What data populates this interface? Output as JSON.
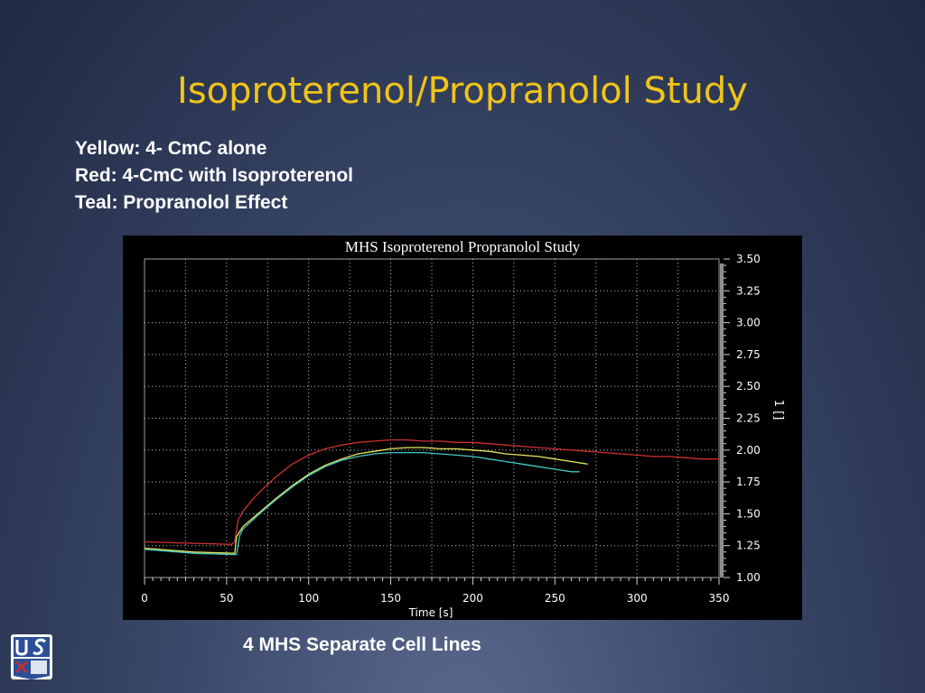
{
  "slide": {
    "title": "Isoproterenol/Propranolol Study",
    "legend_lines": [
      "Yellow: 4- CmC alone",
      "Red: 4-CmC with Isoproterenol",
      "Teal: Propranolol Effect"
    ],
    "caption": "4 MHS Separate Cell Lines"
  },
  "logo": {
    "letters": "USU",
    "colors": {
      "blue": "#2b4f96",
      "red": "#b8323c",
      "white": "#ffffff"
    }
  },
  "chart_data": {
    "type": "line",
    "title": "MHS Isoproterenol Propranolol Study",
    "xlabel": "Time [s]",
    "ylabel": "",
    "right_label": "1 []",
    "xlim": [
      0,
      350
    ],
    "ylim": [
      1.0,
      3.5
    ],
    "x_ticks": [
      0,
      50,
      100,
      150,
      200,
      250,
      300,
      350
    ],
    "y_ticks": [
      "1.00",
      "1.25",
      "1.50",
      "1.75",
      "2.00",
      "2.25",
      "2.50",
      "2.75",
      "3.00",
      "3.25",
      "3.50"
    ],
    "grid": true,
    "legend": "none",
    "series": [
      {
        "color": "#d03030",
        "x": [
          0,
          53,
          55,
          57,
          60,
          65,
          70,
          80,
          90,
          100,
          110,
          120,
          130,
          140,
          150,
          160,
          170,
          180,
          190,
          200,
          210,
          220,
          230,
          240,
          250,
          260,
          270,
          280,
          290,
          300,
          310,
          320,
          330,
          340,
          350
        ],
        "y": [
          1.28,
          1.26,
          1.28,
          1.45,
          1.52,
          1.6,
          1.67,
          1.79,
          1.89,
          1.96,
          2.01,
          2.04,
          2.06,
          2.07,
          2.08,
          2.08,
          2.07,
          2.07,
          2.06,
          2.06,
          2.05,
          2.04,
          2.03,
          2.02,
          2.01,
          2.0,
          1.99,
          1.98,
          1.97,
          1.96,
          1.95,
          1.95,
          1.94,
          1.93,
          1.93
        ]
      },
      {
        "color": "#e8e860",
        "x": [
          0,
          30,
          55,
          56,
          60,
          70,
          80,
          90,
          100,
          110,
          120,
          130,
          140,
          150,
          160,
          170,
          180,
          190,
          200,
          210,
          220,
          230,
          240,
          250,
          260,
          270
        ],
        "y": [
          1.23,
          1.2,
          1.19,
          1.32,
          1.4,
          1.51,
          1.62,
          1.72,
          1.81,
          1.88,
          1.93,
          1.97,
          1.99,
          2.01,
          2.02,
          2.02,
          2.01,
          2.01,
          2.0,
          1.99,
          1.97,
          1.96,
          1.95,
          1.93,
          1.91,
          1.89
        ]
      },
      {
        "color": "#40c8c8",
        "x": [
          0,
          30,
          54,
          56,
          58,
          60,
          70,
          80,
          90,
          100,
          110,
          120,
          130,
          140,
          150,
          160,
          170,
          180,
          190,
          200,
          210,
          220,
          230,
          240,
          250,
          260,
          265
        ],
        "y": [
          1.22,
          1.19,
          1.18,
          1.18,
          1.33,
          1.38,
          1.5,
          1.61,
          1.71,
          1.8,
          1.87,
          1.92,
          1.95,
          1.97,
          1.98,
          1.98,
          1.98,
          1.97,
          1.96,
          1.95,
          1.93,
          1.91,
          1.89,
          1.87,
          1.85,
          1.83,
          1.83
        ]
      }
    ]
  }
}
